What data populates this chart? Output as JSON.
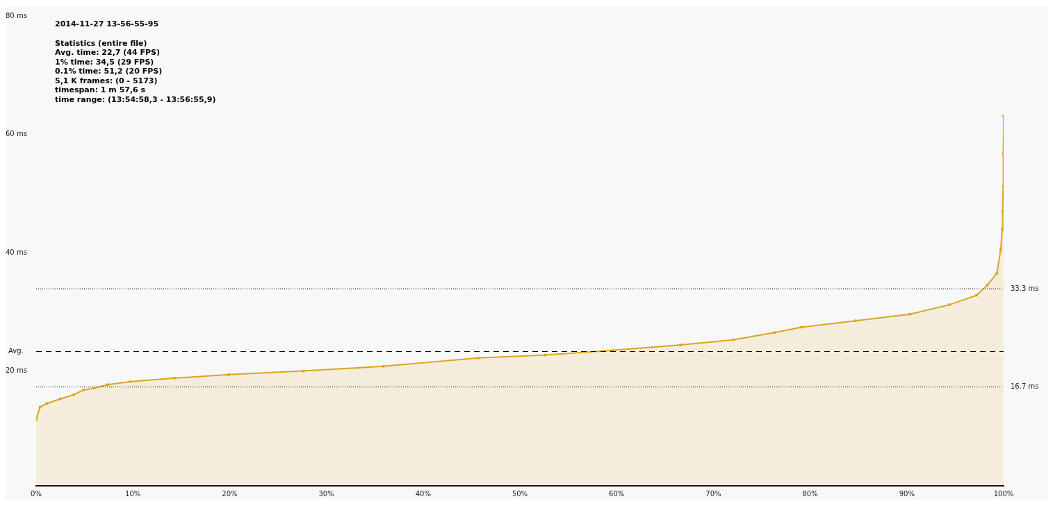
{
  "chart_data": {
    "type": "area",
    "title": "2014-11-27 13-56-55-95",
    "annotations": [
      "Statistics (entire file)",
      "Avg. time: 22,7 (44 FPS)",
      "1% time: 34,5 (29 FPS)",
      "0.1% time: 51,2 (20 FPS)",
      "5,1 K frames: (0 - 5173)",
      "timespan: 1 m 57,6 s",
      "time range: (13:54:58,3 - 13:56:55,9)"
    ],
    "series": [
      {
        "color": "#daa520",
        "x": [
          0,
          0.4,
          1.1,
          2.5,
          3.9,
          4.9,
          6.0,
          7.4,
          9.7,
          14.3,
          19.9,
          27.6,
          35.9,
          45.7,
          52.6,
          59.6,
          66.6,
          72.1,
          76.3,
          79.1,
          84.7,
          90.3,
          94.4,
          97.2,
          98.3,
          99.3,
          99.7,
          99.86,
          99.9,
          99.95,
          99.97,
          100
        ],
        "values": [
          11.2,
          13.3,
          13.9,
          14.7,
          15.4,
          16.2,
          16.5,
          17.1,
          17.6,
          18.2,
          18.8,
          19.4,
          20.2,
          21.6,
          22.1,
          22.9,
          23.8,
          24.7,
          25.9,
          26.8,
          27.9,
          29.0,
          30.6,
          32.2,
          33.9,
          35.9,
          39.9,
          43.3,
          46.4,
          50.6,
          56.2,
          62.5
        ]
      }
    ],
    "xlim": [
      0,
      100
    ],
    "xticks": [
      {
        "value": 0,
        "label": "0%"
      },
      {
        "value": 10,
        "label": "10%"
      },
      {
        "value": 20,
        "label": "20%"
      },
      {
        "value": 30,
        "label": "30%"
      },
      {
        "value": 40,
        "label": "40%"
      },
      {
        "value": 50,
        "label": "50%"
      },
      {
        "value": 60,
        "label": "60%"
      },
      {
        "value": 70,
        "label": "70%"
      },
      {
        "value": 80,
        "label": "80%"
      },
      {
        "value": 90,
        "label": "90%"
      },
      {
        "value": 100,
        "label": "100%"
      }
    ],
    "ylim": [
      0,
      80
    ],
    "yticks": [
      {
        "value": 20,
        "label": "20 ms"
      },
      {
        "value": 40,
        "label": "40 ms"
      },
      {
        "value": 60,
        "label": "60 ms"
      },
      {
        "value": 80,
        "label": "80 ms"
      }
    ],
    "ref_lines": [
      {
        "axis": "y",
        "value": 33.3,
        "label": "33.3 ms",
        "color": "#000000",
        "line_style": "dotted"
      },
      {
        "axis": "y",
        "value": 16.7,
        "label": "16.7 ms",
        "color": "#000000",
        "line_style": "dotted"
      },
      {
        "axis": "y",
        "value": 22.7,
        "label": "Avg.",
        "color": "#000000",
        "line_style": "dashed"
      }
    ],
    "grid": false,
    "legend": false,
    "marker": "square",
    "line_style": "solid"
  }
}
